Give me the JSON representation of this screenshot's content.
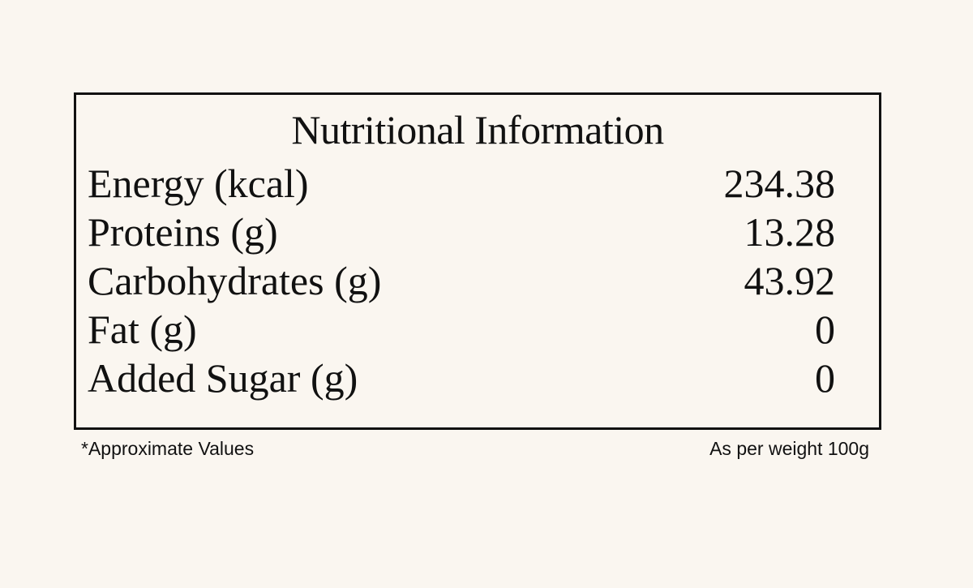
{
  "title": "Nutritional Information",
  "table": {
    "rows": [
      [
        "Energy (kcal)",
        234.38
      ],
      [
        "Proteins (g)",
        13.28
      ],
      [
        "Carbohydrates (g)",
        43.92
      ],
      [
        "Fat (g)",
        0
      ],
      [
        "Added Sugar (g)",
        0
      ]
    ]
  },
  "footnotes": {
    "left": "*Approximate Values",
    "right": "As per weight 100g"
  }
}
